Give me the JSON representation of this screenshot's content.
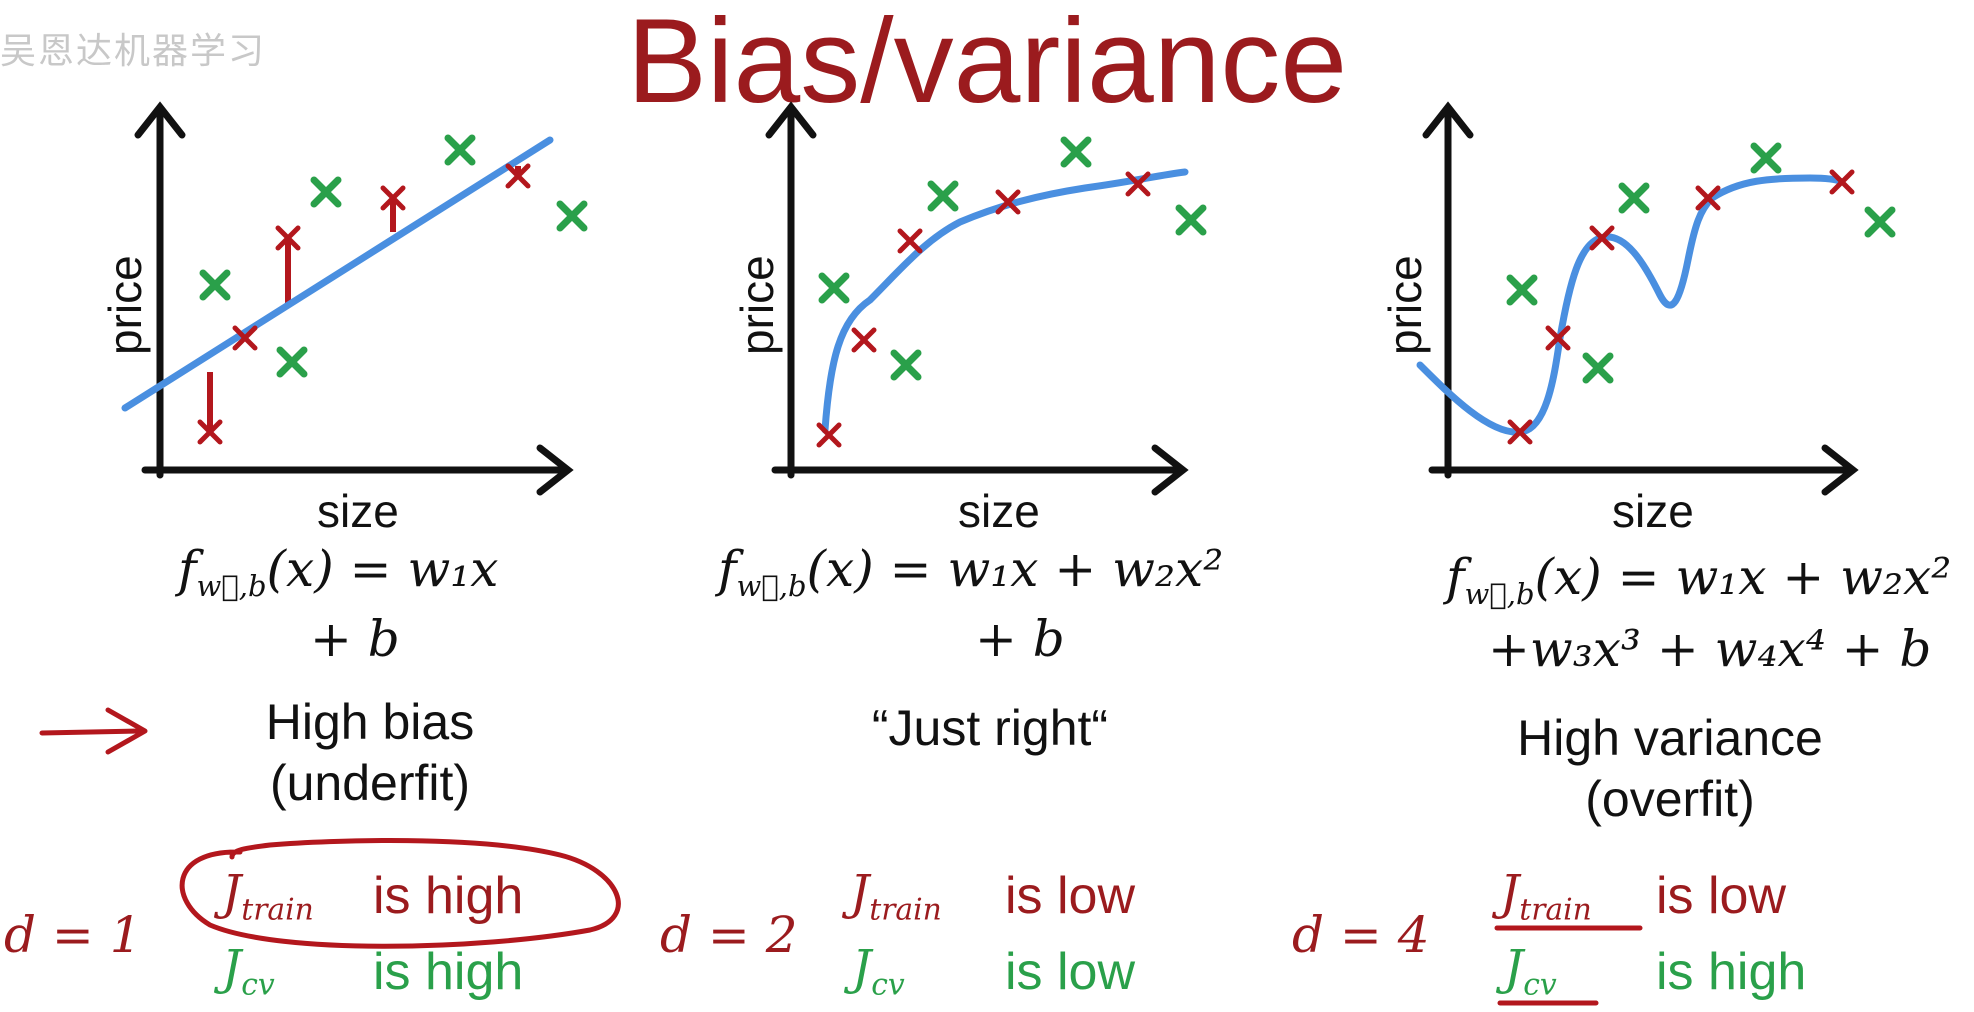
{
  "title": "Bias/variance",
  "watermark": "吴恩达机器学习",
  "colors": {
    "title": "#9b1b1e",
    "fit_curve": "#4a8fe0",
    "train_point": "#b3171d",
    "cv_point": "#2aa04a",
    "annotation": "#b3171d"
  },
  "panels": [
    {
      "ylabel": "price",
      "xlabel": "size",
      "formula": {
        "line1_rhs": "w₁x",
        "line2": "+ b"
      },
      "verdict_line1": "High bias",
      "verdict_line2": "(underfit)",
      "degree": "d = 1",
      "j_train_value": "is high",
      "j_cv_value": "is high"
    },
    {
      "ylabel": "price",
      "xlabel": "size",
      "formula": {
        "line1_rhs": "w₁x + w₂x²",
        "line2": "+ b"
      },
      "verdict_line1": "“Just right“",
      "verdict_line2": "",
      "degree": "d = 2",
      "j_train_value": "is low",
      "j_cv_value": "is low"
    },
    {
      "ylabel": "price",
      "xlabel": "size",
      "formula": {
        "line1_rhs": "w₁x + w₂x²",
        "line2": "+w₃x³ + w₄x⁴ + b"
      },
      "verdict_line1": "High variance",
      "verdict_line2": "(overfit)",
      "degree": "d = 4",
      "j_train_value": "is low",
      "j_cv_value": "is high"
    }
  ],
  "formula_lhs": "f",
  "formula_lhs_sub": "w⃗,b",
  "formula_arg": "(x) =",
  "j_train_label": {
    "base": "J",
    "sub": "train"
  },
  "j_cv_label": {
    "base": "J",
    "sub": "cv"
  }
}
